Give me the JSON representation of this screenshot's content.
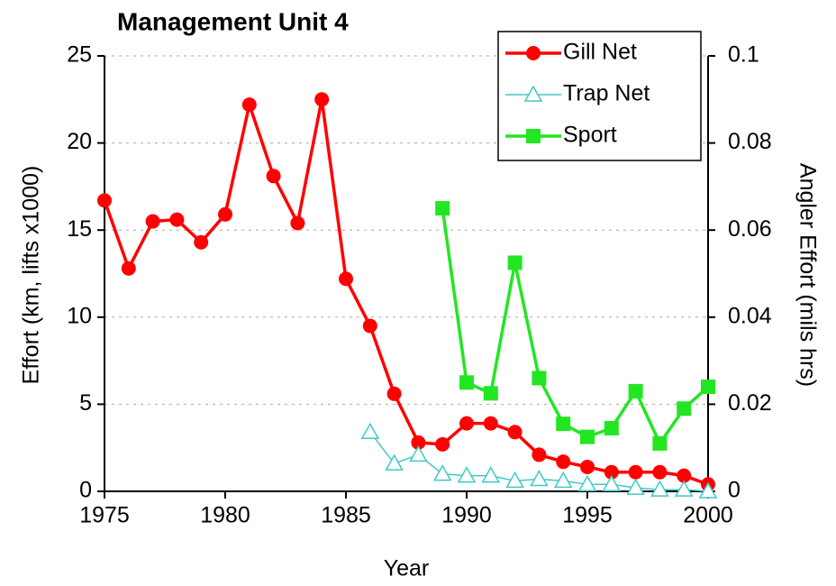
{
  "chart_data": {
    "type": "line",
    "title": "Management Unit 4",
    "xlabel": "Year",
    "ylabel": "Effort (km, lifts x1000)",
    "y2label": "Angler Effort (mils hrs)",
    "x": [
      1975,
      1976,
      1977,
      1978,
      1979,
      1980,
      1981,
      1982,
      1983,
      1984,
      1985,
      1986,
      1987,
      1988,
      1989,
      1990,
      1991,
      1992,
      1993,
      1994,
      1995,
      1996,
      1997,
      1998,
      1999,
      2000
    ],
    "xlim": [
      1975,
      2000
    ],
    "xticks": [
      1975,
      1980,
      1985,
      1990,
      1995,
      2000
    ],
    "ylim": [
      0,
      25
    ],
    "yticks": [
      0,
      5,
      10,
      15,
      20,
      25
    ],
    "y2lim": [
      0,
      0.1
    ],
    "y2ticks": [
      0,
      0.02,
      0.04,
      0.06,
      0.08,
      0.1
    ],
    "grid": true,
    "legend": "upper right",
    "series": [
      {
        "name": "Gill Net",
        "color": "#ff0000",
        "marker": "circle",
        "values": [
          16.7,
          12.8,
          15.5,
          15.6,
          14.3,
          15.9,
          22.2,
          18.1,
          15.4,
          22.5,
          12.2,
          9.5,
          5.6,
          2.8,
          2.7,
          3.9,
          3.9,
          3.4,
          2.1,
          1.7,
          1.4,
          1.1,
          1.1,
          1.1,
          0.9,
          0.4
        ]
      },
      {
        "name": "Trap Net",
        "color": "#40c8c8",
        "marker": "triangle",
        "values": [
          null,
          null,
          null,
          null,
          null,
          null,
          null,
          null,
          null,
          null,
          null,
          3.4,
          1.6,
          2.1,
          1.0,
          0.9,
          0.9,
          0.6,
          0.7,
          0.6,
          0.4,
          0.4,
          0.2,
          0.1,
          0.1,
          0.0
        ]
      },
      {
        "name": "Sport",
        "color": "#22e622",
        "marker": "square",
        "axis": "y2",
        "values": [
          null,
          null,
          null,
          null,
          null,
          null,
          null,
          null,
          null,
          null,
          null,
          null,
          null,
          null,
          0.065,
          0.025,
          0.0225,
          0.0525,
          0.026,
          0.0155,
          0.0125,
          0.0145,
          0.023,
          0.011,
          0.019,
          0.024
        ]
      }
    ]
  }
}
